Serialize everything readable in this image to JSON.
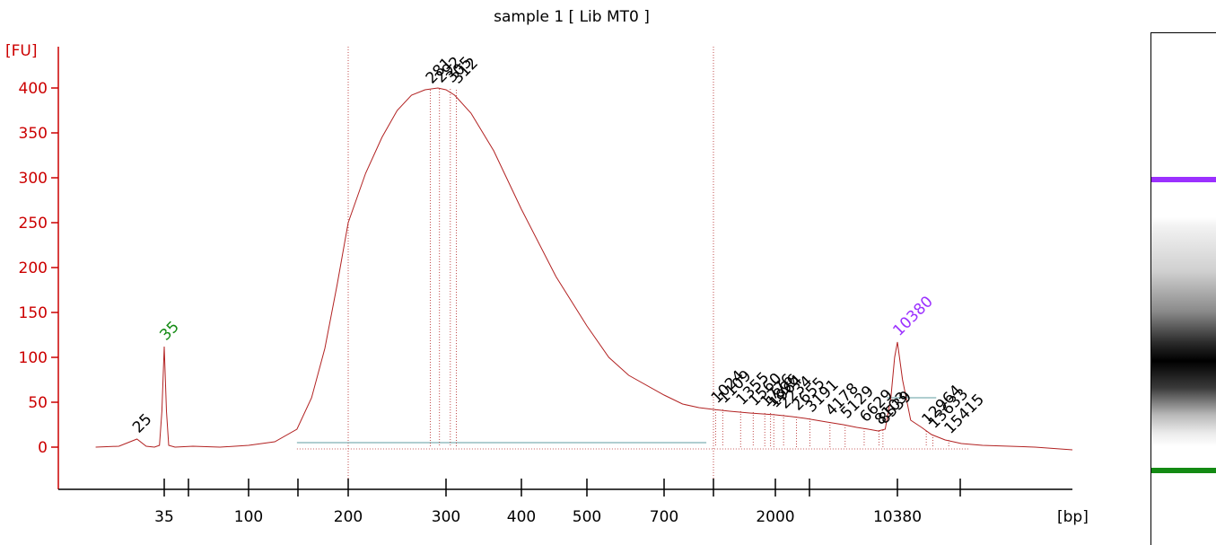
{
  "colors": {
    "axis": "#cc0000",
    "trace": "#b22222",
    "marker": "#138a13",
    "upper_marker": "#9b30ff",
    "baseline": "#5f9ea0",
    "label": "#000000"
  },
  "chart_data": {
    "type": "line",
    "title": "sample 1  [ Lib MT0 ]",
    "ylabel": "[FU]",
    "xlabel": "[bp]",
    "ylim": [
      -40,
      440
    ],
    "y_ticks": [
      0,
      50,
      100,
      150,
      200,
      250,
      300,
      350,
      400
    ],
    "y_tick_labels": [
      "0",
      "50",
      "100",
      "150",
      "200",
      "250",
      "300",
      "350",
      "400"
    ],
    "x_ticks": [
      "35",
      "",
      "100",
      "",
      "200",
      "300",
      "400",
      "500",
      "700",
      "",
      "2000",
      "",
      "10380",
      ""
    ],
    "x_tick_labels": [
      "35",
      "100",
      "200",
      "300",
      "400",
      "500",
      "700",
      "2000",
      "10380"
    ],
    "series": [
      {
        "x": [
          15,
          20,
          25,
          28,
          31,
          33,
          34,
          35,
          36,
          37,
          40,
          50,
          70,
          100,
          120,
          140,
          155,
          170,
          185,
          200,
          215,
          230,
          245,
          260,
          275,
          290,
          300,
          310,
          330,
          360,
          400,
          450,
          500,
          550,
          600,
          700,
          800,
          900,
          1000,
          1200,
          1500,
          2000,
          2500,
          3000,
          4000,
          5000,
          6000,
          7000,
          8000,
          8800,
          9500,
          10000,
          10380,
          10800,
          11500,
          12500,
          13500,
          15000,
          17000,
          20000,
          30000,
          40000
        ],
        "y": [
          0,
          1,
          9,
          1,
          0,
          2,
          40,
          112,
          40,
          2,
          0,
          1,
          0,
          2,
          6,
          20,
          55,
          110,
          180,
          250,
          305,
          345,
          375,
          392,
          398,
          400,
          398,
          392,
          372,
          330,
          265,
          190,
          135,
          100,
          80,
          58,
          48,
          44,
          42,
          40,
          38,
          36,
          34,
          32,
          28,
          25,
          22,
          20,
          18,
          20,
          55,
          100,
          117,
          75,
          30,
          22,
          14,
          8,
          4,
          2,
          0,
          -3
        ]
      }
    ],
    "peaks": [
      {
        "label": "25",
        "x": 25,
        "y": 9,
        "color": "label"
      },
      {
        "label": "35",
        "x": 35,
        "y": 112,
        "color": "marker"
      },
      {
        "label": "281",
        "x": 281,
        "y": 398,
        "color": "label"
      },
      {
        "label": "292",
        "x": 292,
        "y": 399,
        "color": "label"
      },
      {
        "label": "305",
        "x": 305,
        "y": 399,
        "color": "label"
      },
      {
        "label": "312",
        "x": 312,
        "y": 398,
        "color": "label"
      },
      {
        "label": "1024",
        "x": 1024,
        "y": 42,
        "color": "label"
      },
      {
        "label": "1109",
        "x": 1109,
        "y": 42,
        "color": "label"
      },
      {
        "label": "1355",
        "x": 1355,
        "y": 40,
        "color": "label"
      },
      {
        "label": "1560",
        "x": 1560,
        "y": 39,
        "color": "label"
      },
      {
        "label": "1776",
        "x": 1776,
        "y": 38,
        "color": "label"
      },
      {
        "label": "1896",
        "x": 1896,
        "y": 38,
        "color": "label"
      },
      {
        "label": "1964",
        "x": 1964,
        "y": 37,
        "color": "label"
      },
      {
        "label": "2234",
        "x": 2234,
        "y": 36,
        "color": "label"
      },
      {
        "label": "2655",
        "x": 2655,
        "y": 34,
        "color": "label"
      },
      {
        "label": "3191",
        "x": 3191,
        "y": 32,
        "color": "label"
      },
      {
        "label": "4178",
        "x": 4178,
        "y": 28,
        "color": "label"
      },
      {
        "label": "5129",
        "x": 5129,
        "y": 25,
        "color": "label"
      },
      {
        "label": "6629",
        "x": 6629,
        "y": 21,
        "color": "label"
      },
      {
        "label": "8103",
        "x": 8103,
        "y": 18,
        "color": "label"
      },
      {
        "label": "8539",
        "x": 8539,
        "y": 19,
        "color": "label"
      },
      {
        "label": "10380",
        "x": 10380,
        "y": 117,
        "color": "upper_marker"
      },
      {
        "label": "12964",
        "x": 12964,
        "y": 18,
        "color": "label"
      },
      {
        "label": "13633",
        "x": 13633,
        "y": 14,
        "color": "label"
      },
      {
        "label": "15415",
        "x": 15415,
        "y": 8,
        "color": "label"
      }
    ],
    "region_lines_bp": [
      200,
      1000
    ],
    "grid": false
  }
}
